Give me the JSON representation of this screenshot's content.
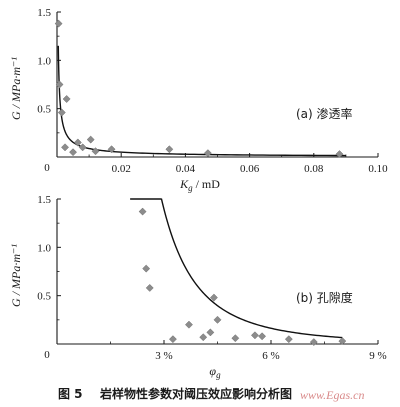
{
  "chart_data": [
    {
      "type": "scatter",
      "panel_label": "(a) 渗透率",
      "ylabel": "G / MPa·m⁻¹",
      "xlabel": "K_g / mD",
      "xlabel_main": "K",
      "xlabel_sub": "g",
      "xlabel_unit": " / mD",
      "xlim": [
        0,
        0.1
      ],
      "ylim": [
        0,
        1.5
      ],
      "x_ticks": [
        0,
        0.02,
        0.04,
        0.06,
        0.08,
        0.1
      ],
      "x_tick_labels": [
        "0",
        "0.02",
        "0.04",
        "0.06",
        "0.08",
        "0.10"
      ],
      "y_ticks": [
        0.5,
        1.0,
        1.5
      ],
      "y_tick_labels": [
        "0.5",
        "1.0",
        "1.5"
      ],
      "origin_label": "0",
      "marker": "diamond",
      "points": [
        {
          "x": 0.0005,
          "y": 1.38
        },
        {
          "x": 0.0008,
          "y": 0.75
        },
        {
          "x": 0.0015,
          "y": 0.46
        },
        {
          "x": 0.0025,
          "y": 0.1
        },
        {
          "x": 0.003,
          "y": 0.6
        },
        {
          "x": 0.005,
          "y": 0.05
        },
        {
          "x": 0.0065,
          "y": 0.15
        },
        {
          "x": 0.008,
          "y": 0.1
        },
        {
          "x": 0.0105,
          "y": 0.18
        },
        {
          "x": 0.012,
          "y": 0.06
        },
        {
          "x": 0.017,
          "y": 0.08
        },
        {
          "x": 0.035,
          "y": 0.08
        },
        {
          "x": 0.047,
          "y": 0.04
        },
        {
          "x": 0.088,
          "y": 0.03
        }
      ],
      "fit_curve": {
        "type": "power",
        "a": 0.0022,
        "b": -0.8,
        "x_from": 0.0004,
        "x_to": 0.09
      }
    },
    {
      "type": "scatter",
      "panel_label": "(b) 孔隙度",
      "ylabel": "G / MPa·m⁻¹",
      "xlabel": "φ_g",
      "xlabel_main": "φ",
      "xlabel_sub": "g",
      "xlim": [
        0,
        0.09
      ],
      "ylim": [
        0,
        1.5
      ],
      "x_ticks": [
        0.03,
        0.06,
        0.09
      ],
      "x_tick_labels": [
        "3 %",
        "6 %",
        "9 %"
      ],
      "y_ticks": [
        0.5,
        1.0,
        1.5
      ],
      "y_tick_labels": [
        "0.5",
        "1.0",
        "1.5"
      ],
      "origin_label": "0",
      "marker": "diamond",
      "points": [
        {
          "x": 0.024,
          "y": 1.37
        },
        {
          "x": 0.025,
          "y": 0.78
        },
        {
          "x": 0.026,
          "y": 0.58
        },
        {
          "x": 0.0325,
          "y": 0.05
        },
        {
          "x": 0.037,
          "y": 0.2
        },
        {
          "x": 0.041,
          "y": 0.07
        },
        {
          "x": 0.043,
          "y": 0.12
        },
        {
          "x": 0.044,
          "y": 0.48
        },
        {
          "x": 0.045,
          "y": 0.25
        },
        {
          "x": 0.05,
          "y": 0.06
        },
        {
          "x": 0.0555,
          "y": 0.09
        },
        {
          "x": 0.0575,
          "y": 0.08
        },
        {
          "x": 0.065,
          "y": 0.05
        },
        {
          "x": 0.072,
          "y": 0.02
        },
        {
          "x": 0.08,
          "y": 0.03
        }
      ],
      "fit_curve": {
        "type": "power",
        "a": 2.65e-05,
        "b": -3.1,
        "x_from": 0.0205,
        "x_to": 0.08
      }
    }
  ],
  "caption": {
    "number": "图 5",
    "text": "岩样物性参数对阈压效应影响分析图"
  },
  "watermark": "www.Egas.cn",
  "colors": {
    "axis": "#1a1a1a",
    "marker": "#8c8c8c",
    "curve": "#111111",
    "watermark": "#d98a8a"
  }
}
